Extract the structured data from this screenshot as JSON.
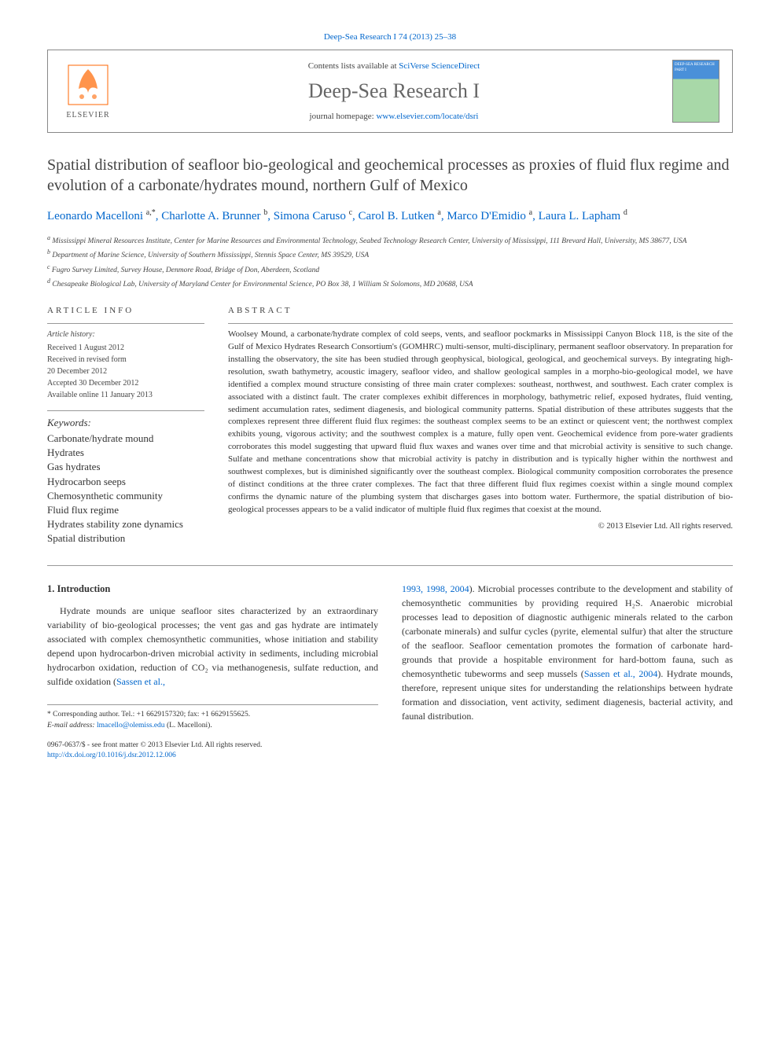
{
  "top": {
    "journal_ref": "Deep-Sea Research I 74 (2013) 25–38",
    "contents_prefix": "Contents lists available at ",
    "contents_link": "SciVerse ScienceDirect",
    "journal_name": "Deep-Sea Research I",
    "homepage_prefix": "journal homepage: ",
    "homepage_link": "www.elsevier.com/locate/dsri",
    "elsevier_label": "ELSEVIER",
    "cover_text": "DEEP-SEA RESEARCH PART I"
  },
  "title": "Spatial distribution of seafloor bio-geological and geochemical processes as proxies of fluid flux regime and evolution of a carbonate/hydrates mound, northern Gulf of Mexico",
  "authors_html": "Leonardo Macelloni <sup>a,*</sup>, Charlotte A. Brunner <sup>b</sup>, Simona Caruso <sup>c</sup>, Carol B. Lutken <sup>a</sup>, Marco D'Emidio <sup>a</sup>, Laura L. Lapham <sup>d</sup>",
  "affiliations": [
    "a Mississippi Mineral Resources Institute, Center for Marine Resources and Environmental Technology, Seabed Technology Research Center, University of Mississippi, 111 Brevard Hall, University, MS 38677, USA",
    "b Department of Marine Science, University of Southern Mississippi, Stennis Space Center, MS 39529, USA",
    "c Fugro Survey Limited, Survey House, Denmore Road, Bridge of Don, Aberdeen, Scotland",
    "d Chesapeake Biological Lab, University of Maryland Center for Environmental Science, PO Box 38, 1 William St Solomons, MD 20688, USA"
  ],
  "info": {
    "section_label": "ARTICLE INFO",
    "history_heading": "Article history:",
    "history": [
      "Received 1 August 2012",
      "Received in revised form",
      "20 December 2012",
      "Accepted 30 December 2012",
      "Available online 11 January 2013"
    ],
    "keywords_heading": "Keywords:",
    "keywords": [
      "Carbonate/hydrate mound",
      "Hydrates",
      "Gas hydrates",
      "Hydrocarbon seeps",
      "Chemosynthetic community",
      "Fluid flux regime",
      "Hydrates stability zone dynamics",
      "Spatial distribution"
    ]
  },
  "abstract": {
    "section_label": "ABSTRACT",
    "text": "Woolsey Mound, a carbonate/hydrate complex of cold seeps, vents, and seafloor pockmarks in Mississippi Canyon Block 118, is the site of the Gulf of Mexico Hydrates Research Consortium's (GOMHRC) multi-sensor, multi-disciplinary, permanent seafloor observatory. In preparation for installing the observatory, the site has been studied through geophysical, biological, geological, and geochemical surveys. By integrating high-resolution, swath bathymetry, acoustic imagery, seafloor video, and shallow geological samples in a morpho-bio-geological model, we have identified a complex mound structure consisting of three main crater complexes: southeast, northwest, and southwest. Each crater complex is associated with a distinct fault. The crater complexes exhibit differences in morphology, bathymetric relief, exposed hydrates, fluid venting, sediment accumulation rates, sediment diagenesis, and biological community patterns. Spatial distribution of these attributes suggests that the complexes represent three different fluid flux regimes: the southeast complex seems to be an extinct or quiescent vent; the northwest complex exhibits young, vigorous activity; and the southwest complex is a mature, fully open vent. Geochemical evidence from pore-water gradients corroborates this model suggesting that upward fluid flux waxes and wanes over time and that microbial activity is sensitive to such change. Sulfate and methane concentrations show that microbial activity is patchy in distribution and is typically higher within the northwest and southwest complexes, but is diminished significantly over the southeast complex. Biological community composition corroborates the presence of distinct conditions at the three crater complexes. The fact that three different fluid flux regimes coexist within a single mound complex confirms the dynamic nature of the plumbing system that discharges gases into bottom water. Furthermore, the spatial distribution of bio-geological processes appears to be a valid indicator of multiple fluid flux regimes that coexist at the mound.",
    "copyright": "© 2013 Elsevier Ltd. All rights reserved."
  },
  "body": {
    "heading": "1.  Introduction",
    "col1": "Hydrate mounds are unique seafloor sites characterized by an extraordinary variability of bio-geological processes; the vent gas and gas hydrate are intimately associated with complex chemosynthetic communities, whose initiation and stability depend upon hydrocarbon-driven microbial activity in sediments, including microbial hydrocarbon oxidation, reduction of CO₂ via methanogenesis, sulfate reduction, and sulfide oxidation (",
    "col1_link": "Sassen et al.,",
    "col2_link": "1993, 1998, 2004",
    "col2": "). Microbial processes contribute to the development and stability of chemosynthetic communities by providing required H₂S. Anaerobic microbial processes lead to deposition of diagnostic authigenic minerals related to the carbon (carbonate minerals) and sulfur cycles (pyrite, elemental sulfur) that alter the structure of the seafloor. Seafloor cementation promotes the formation of carbonate hard-grounds that provide a hospitable environment for hard-bottom fauna, such as chemosynthetic tubeworms and seep mussels (",
    "col2_link2": "Sassen et al., 2004",
    "col2_end": "). Hydrate mounds, therefore, represent unique sites for understanding the relationships between hydrate formation and dissociation, vent activity, sediment diagenesis, bacterial activity, and faunal distribution."
  },
  "footnote": {
    "corr_label": "* Corresponding author. Tel.: +1 6629157320; fax: +1 6629155625.",
    "email_label": "E-mail address: ",
    "email": "lmacello@olemiss.edu",
    "email_suffix": " (L. Macelloni)."
  },
  "footer": {
    "issn_line": "0967-0637/$ - see front matter © 2013 Elsevier Ltd. All rights reserved.",
    "doi": "http://dx.doi.org/10.1016/j.dsr.2012.12.006"
  },
  "colors": {
    "link": "#0066cc",
    "text": "#333333",
    "muted": "#444444",
    "border": "#999999",
    "elsevier_orange": "#ff6600"
  },
  "typography": {
    "body_pt": 12,
    "title_pt": 20,
    "journal_pt": 26,
    "abstract_pt": 11,
    "small_pt": 10
  }
}
